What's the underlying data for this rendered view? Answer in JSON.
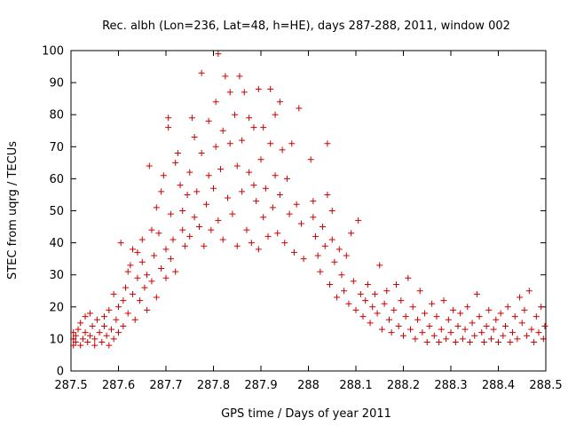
{
  "chart_data": {
    "type": "scatter",
    "title": "Rec. albh (Lon=236, Lat=48, h=HE), days 287-288, 2011, window 002",
    "xlabel": "GPS time / Days of year 2011",
    "ylabel": "STEC from uqrg / TECUs",
    "xlim": [
      287.5,
      288.5
    ],
    "ylim": [
      0,
      100
    ],
    "x_ticks": [
      "287.5",
      "287.6",
      "287.7",
      "287.8",
      "287.9",
      "288",
      "288.1",
      "288.2",
      "288.3",
      "288.4",
      "288.5"
    ],
    "y_ticks": [
      "0",
      "10",
      "20",
      "30",
      "40",
      "50",
      "60",
      "70",
      "80",
      "90",
      "100"
    ],
    "grid": false,
    "legend": "none",
    "marker": "plus",
    "color": "#cc0000",
    "series": [
      {
        "points": [
          [
            287.505,
            8
          ],
          [
            287.505,
            10
          ],
          [
            287.505,
            12
          ],
          [
            287.51,
            9
          ],
          [
            287.51,
            11
          ],
          [
            287.515,
            13
          ],
          [
            287.52,
            8
          ],
          [
            287.52,
            15
          ],
          [
            287.525,
            10
          ],
          [
            287.53,
            17
          ],
          [
            287.53,
            12
          ],
          [
            287.535,
            9
          ],
          [
            287.54,
            11
          ],
          [
            287.54,
            18
          ],
          [
            287.545,
            14
          ],
          [
            287.55,
            8
          ],
          [
            287.55,
            10
          ],
          [
            287.555,
            16
          ],
          [
            287.56,
            12
          ],
          [
            287.565,
            9
          ],
          [
            287.57,
            14
          ],
          [
            287.57,
            17
          ],
          [
            287.575,
            11
          ],
          [
            287.58,
            8
          ],
          [
            287.58,
            19
          ],
          [
            287.585,
            13
          ],
          [
            287.59,
            10
          ],
          [
            287.59,
            24
          ],
          [
            287.595,
            16
          ],
          [
            287.6,
            12
          ],
          [
            287.6,
            20
          ],
          [
            287.605,
            40
          ],
          [
            287.61,
            14
          ],
          [
            287.61,
            22
          ],
          [
            287.615,
            26
          ],
          [
            287.62,
            18
          ],
          [
            287.62,
            31
          ],
          [
            287.625,
            33
          ],
          [
            287.63,
            24
          ],
          [
            287.63,
            38
          ],
          [
            287.635,
            16
          ],
          [
            287.64,
            29
          ],
          [
            287.64,
            37
          ],
          [
            287.645,
            22
          ],
          [
            287.65,
            34
          ],
          [
            287.65,
            41
          ],
          [
            287.655,
            26
          ],
          [
            287.66,
            19
          ],
          [
            287.66,
            30
          ],
          [
            287.665,
            64
          ],
          [
            287.67,
            44
          ],
          [
            287.67,
            28
          ],
          [
            287.675,
            36
          ],
          [
            287.68,
            51
          ],
          [
            287.68,
            23
          ],
          [
            287.685,
            43
          ],
          [
            287.69,
            56
          ],
          [
            287.69,
            32
          ],
          [
            287.695,
            61
          ],
          [
            287.7,
            38
          ],
          [
            287.7,
            29
          ],
          [
            287.705,
            76
          ],
          [
            287.705,
            79
          ],
          [
            287.71,
            49
          ],
          [
            287.71,
            35
          ],
          [
            287.715,
            41
          ],
          [
            287.72,
            65
          ],
          [
            287.72,
            31
          ],
          [
            287.725,
            68
          ],
          [
            287.73,
            58
          ],
          [
            287.735,
            44
          ],
          [
            287.735,
            50
          ],
          [
            287.74,
            39
          ],
          [
            287.745,
            55
          ],
          [
            287.75,
            62
          ],
          [
            287.75,
            42
          ],
          [
            287.755,
            79
          ],
          [
            287.76,
            48
          ],
          [
            287.76,
            73
          ],
          [
            287.765,
            56
          ],
          [
            287.77,
            45
          ],
          [
            287.775,
            93
          ],
          [
            287.775,
            68
          ],
          [
            287.78,
            39
          ],
          [
            287.785,
            52
          ],
          [
            287.79,
            78
          ],
          [
            287.79,
            61
          ],
          [
            287.795,
            44
          ],
          [
            287.8,
            57
          ],
          [
            287.805,
            70
          ],
          [
            287.805,
            84
          ],
          [
            287.81,
            99
          ],
          [
            287.81,
            47
          ],
          [
            287.815,
            63
          ],
          [
            287.82,
            75
          ],
          [
            287.82,
            41
          ],
          [
            287.825,
            92
          ],
          [
            287.83,
            54
          ],
          [
            287.835,
            71
          ],
          [
            287.835,
            87
          ],
          [
            287.84,
            49
          ],
          [
            287.845,
            80
          ],
          [
            287.85,
            64
          ],
          [
            287.85,
            39
          ],
          [
            287.855,
            92
          ],
          [
            287.86,
            56
          ],
          [
            287.86,
            72
          ],
          [
            287.865,
            87
          ],
          [
            287.87,
            44
          ],
          [
            287.875,
            62
          ],
          [
            287.875,
            79
          ],
          [
            287.88,
            40
          ],
          [
            287.885,
            58
          ],
          [
            287.885,
            76
          ],
          [
            287.89,
            53
          ],
          [
            287.895,
            88
          ],
          [
            287.895,
            38
          ],
          [
            287.9,
            66
          ],
          [
            287.905,
            48
          ],
          [
            287.905,
            76
          ],
          [
            287.91,
            57
          ],
          [
            287.915,
            42
          ],
          [
            287.92,
            88
          ],
          [
            287.92,
            71
          ],
          [
            287.925,
            51
          ],
          [
            287.93,
            80
          ],
          [
            287.93,
            61
          ],
          [
            287.935,
            43
          ],
          [
            287.94,
            84
          ],
          [
            287.94,
            55
          ],
          [
            287.945,
            69
          ],
          [
            287.95,
            40
          ],
          [
            287.955,
            60
          ],
          [
            287.96,
            49
          ],
          [
            287.965,
            71
          ],
          [
            287.97,
            37
          ],
          [
            287.975,
            52
          ],
          [
            287.98,
            82
          ],
          [
            287.985,
            46
          ],
          [
            287.99,
            35
          ],
          [
            288.005,
            66
          ],
          [
            288.01,
            48
          ],
          [
            288.01,
            53
          ],
          [
            288.015,
            42
          ],
          [
            288.02,
            36
          ],
          [
            288.025,
            31
          ],
          [
            288.03,
            45
          ],
          [
            288.035,
            39
          ],
          [
            288.04,
            71
          ],
          [
            288.04,
            55
          ],
          [
            288.045,
            27
          ],
          [
            288.05,
            50
          ],
          [
            288.05,
            41
          ],
          [
            288.055,
            34
          ],
          [
            288.06,
            23
          ],
          [
            288.065,
            38
          ],
          [
            288.07,
            30
          ],
          [
            288.075,
            25
          ],
          [
            288.08,
            36
          ],
          [
            288.085,
            21
          ],
          [
            288.09,
            43
          ],
          [
            288.095,
            28
          ],
          [
            288.1,
            19
          ],
          [
            288.105,
            47
          ],
          [
            288.11,
            24
          ],
          [
            288.115,
            17
          ],
          [
            288.12,
            22
          ],
          [
            288.125,
            27
          ],
          [
            288.13,
            15
          ],
          [
            288.135,
            20
          ],
          [
            288.14,
            24
          ],
          [
            288.145,
            18
          ],
          [
            288.15,
            33
          ],
          [
            288.155,
            13
          ],
          [
            288.16,
            21
          ],
          [
            288.165,
            25
          ],
          [
            288.17,
            16
          ],
          [
            288.175,
            12
          ],
          [
            288.18,
            19
          ],
          [
            288.185,
            27
          ],
          [
            288.19,
            14
          ],
          [
            288.195,
            22
          ],
          [
            288.2,
            11
          ],
          [
            288.205,
            17
          ],
          [
            288.21,
            29
          ],
          [
            288.215,
            13
          ],
          [
            288.22,
            20
          ],
          [
            288.225,
            10
          ],
          [
            288.23,
            16
          ],
          [
            288.235,
            25
          ],
          [
            288.24,
            12
          ],
          [
            288.245,
            18
          ],
          [
            288.25,
            9
          ],
          [
            288.255,
            14
          ],
          [
            288.26,
            21
          ],
          [
            288.265,
            11
          ],
          [
            288.27,
            17
          ],
          [
            288.275,
            9
          ],
          [
            288.28,
            13
          ],
          [
            288.285,
            22
          ],
          [
            288.29,
            10
          ],
          [
            288.295,
            16
          ],
          [
            288.3,
            12
          ],
          [
            288.305,
            19
          ],
          [
            288.31,
            9
          ],
          [
            288.315,
            14
          ],
          [
            288.32,
            18
          ],
          [
            288.325,
            10
          ],
          [
            288.33,
            13
          ],
          [
            288.335,
            20
          ],
          [
            288.34,
            9
          ],
          [
            288.345,
            15
          ],
          [
            288.35,
            11
          ],
          [
            288.355,
            24
          ],
          [
            288.36,
            17
          ],
          [
            288.365,
            12
          ],
          [
            288.37,
            9
          ],
          [
            288.375,
            14
          ],
          [
            288.38,
            19
          ],
          [
            288.385,
            10
          ],
          [
            288.39,
            13
          ],
          [
            288.395,
            16
          ],
          [
            288.4,
            9
          ],
          [
            288.405,
            18
          ],
          [
            288.41,
            11
          ],
          [
            288.415,
            14
          ],
          [
            288.42,
            20
          ],
          [
            288.425,
            9
          ],
          [
            288.43,
            12
          ],
          [
            288.435,
            17
          ],
          [
            288.44,
            10
          ],
          [
            288.445,
            23
          ],
          [
            288.45,
            15
          ],
          [
            288.455,
            19
          ],
          [
            288.46,
            11
          ],
          [
            288.465,
            25
          ],
          [
            288.47,
            13
          ],
          [
            288.475,
            9
          ],
          [
            288.48,
            17
          ],
          [
            288.485,
            12
          ],
          [
            288.49,
            20
          ],
          [
            288.495,
            10
          ],
          [
            288.498,
            14
          ]
        ]
      }
    ]
  }
}
